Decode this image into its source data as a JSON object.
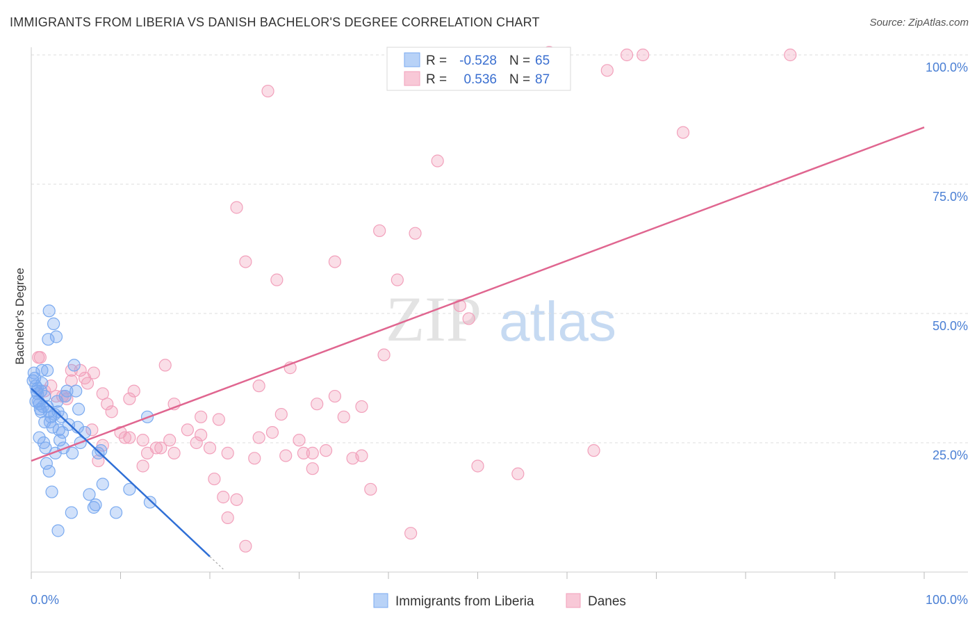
{
  "title": "IMMIGRANTS FROM LIBERIA VS DANISH BACHELOR'S DEGREE CORRELATION CHART",
  "source": "Source: ZipAtlas.com",
  "watermark": {
    "zip": "ZIP",
    "atlas": "atlas"
  },
  "colors": {
    "blue": "#7aaaf0",
    "blue_line": "#2f6fd6",
    "pink": "#f2a0bb",
    "pink_line": "#e06690",
    "axis_text": "#4a7fd4"
  },
  "chart_data": {
    "type": "scatter",
    "title": "IMMIGRANTS FROM LIBERIA VS DANISH BACHELOR'S DEGREE CORRELATION CHART",
    "xlabel": "",
    "ylabel": "Bachelor's Degree",
    "xlim": [
      0,
      100
    ],
    "ylim": [
      0,
      100
    ],
    "x_tick_labels": [
      "0.0%",
      "100.0%"
    ],
    "y_tick_labels": [
      {
        "value": 25,
        "label": "25.0%"
      },
      {
        "value": 50,
        "label": "50.0%"
      },
      {
        "value": 75,
        "label": "75.0%"
      },
      {
        "value": 100,
        "label": "100.0%"
      }
    ],
    "legend": {
      "rows": [
        {
          "r_label": "R =",
          "r_value": "-0.528",
          "n_label": "N =",
          "n_value": "65"
        },
        {
          "r_label": "R =",
          "r_value": "0.536",
          "n_label": "N =",
          "n_value": "87"
        }
      ],
      "bottom": [
        "Immigrants from Liberia",
        "Danes"
      ]
    },
    "series": [
      {
        "name": "Immigrants from Liberia",
        "regression": {
          "x": [
            0,
            20
          ],
          "y": [
            35.5,
            3
          ]
        },
        "points": [
          [
            0.3,
            38.5
          ],
          [
            0.4,
            37.5
          ],
          [
            0.5,
            36
          ],
          [
            0.6,
            35
          ],
          [
            0.7,
            34.5
          ],
          [
            0.8,
            33
          ],
          [
            0.9,
            32.5
          ],
          [
            1,
            31.5
          ],
          [
            1.1,
            35
          ],
          [
            1.2,
            36.5
          ],
          [
            0.5,
            33
          ],
          [
            1.5,
            34
          ],
          [
            1.8,
            32
          ],
          [
            2,
            31
          ],
          [
            2.2,
            30
          ],
          [
            0.9,
            26
          ],
          [
            1.4,
            25
          ],
          [
            1.6,
            24
          ],
          [
            1.7,
            21
          ],
          [
            2,
            19.5
          ],
          [
            2.3,
            15.5
          ],
          [
            2.1,
            29
          ],
          [
            2.4,
            28
          ],
          [
            2.6,
            30.5
          ],
          [
            3,
            31
          ],
          [
            3.1,
            27.5
          ],
          [
            3.2,
            25.5
          ],
          [
            3.4,
            30
          ],
          [
            3.5,
            27
          ],
          [
            3.6,
            24
          ],
          [
            3.8,
            34
          ],
          [
            4,
            35
          ],
          [
            4.2,
            28.5
          ],
          [
            4.5,
            11.5
          ],
          [
            4.6,
            23
          ],
          [
            4.8,
            40
          ],
          [
            5,
            35
          ],
          [
            5.2,
            28
          ],
          [
            5.3,
            31.5
          ],
          [
            5.5,
            25
          ],
          [
            6,
            27
          ],
          [
            6.5,
            15
          ],
          [
            7,
            12.5
          ],
          [
            7.2,
            13
          ],
          [
            7.5,
            23
          ],
          [
            7.8,
            23.5
          ],
          [
            8,
            17
          ],
          [
            9.5,
            11.5
          ],
          [
            11,
            16
          ],
          [
            13.3,
            13.5
          ],
          [
            13,
            30
          ],
          [
            3,
            8
          ],
          [
            2,
            50.5
          ],
          [
            2.5,
            48
          ],
          [
            2.8,
            45.5
          ],
          [
            1.9,
            45
          ],
          [
            1.8,
            39
          ],
          [
            1.2,
            39
          ],
          [
            2.7,
            23
          ],
          [
            1.1,
            31
          ],
          [
            1.3,
            32
          ],
          [
            1.5,
            29
          ],
          [
            2.9,
            33
          ],
          [
            0.2,
            37
          ],
          [
            0.7,
            35.5
          ]
        ]
      },
      {
        "name": "Danes",
        "regression": {
          "x": [
            0,
            100
          ],
          "y": [
            21.5,
            86
          ]
        },
        "points": [
          [
            66.7,
            100
          ],
          [
            68.5,
            100
          ],
          [
            85,
            100
          ],
          [
            64.5,
            97
          ],
          [
            58,
            100.5
          ],
          [
            26.5,
            93
          ],
          [
            73,
            85
          ],
          [
            45.5,
            79.5
          ],
          [
            23,
            70.5
          ],
          [
            39,
            66
          ],
          [
            43,
            65.5
          ],
          [
            24,
            60
          ],
          [
            34,
            60
          ],
          [
            27.5,
            56.5
          ],
          [
            41,
            56.5
          ],
          [
            48,
            51.5
          ],
          [
            49,
            49
          ],
          [
            39.5,
            42
          ],
          [
            1,
            41.5
          ],
          [
            0.8,
            41.5
          ],
          [
            15,
            40
          ],
          [
            29,
            39.5
          ],
          [
            4.5,
            39
          ],
          [
            5.5,
            39
          ],
          [
            7,
            38.5
          ],
          [
            6,
            37.5
          ],
          [
            4.5,
            37
          ],
          [
            6.3,
            36.5
          ],
          [
            2.2,
            36
          ],
          [
            25.5,
            36
          ],
          [
            1.5,
            35
          ],
          [
            8,
            34.5
          ],
          [
            11.5,
            35
          ],
          [
            34,
            34
          ],
          [
            3.8,
            34
          ],
          [
            2.8,
            34
          ],
          [
            11,
            33.5
          ],
          [
            4,
            33.5
          ],
          [
            8.5,
            32.5
          ],
          [
            16,
            32.5
          ],
          [
            32,
            32.5
          ],
          [
            37,
            32
          ],
          [
            9,
            31
          ],
          [
            28,
            30.5
          ],
          [
            19,
            30
          ],
          [
            21,
            29.5
          ],
          [
            35,
            30
          ],
          [
            6.8,
            27.5
          ],
          [
            10,
            27
          ],
          [
            17.5,
            27.5
          ],
          [
            19,
            26.5
          ],
          [
            11,
            26
          ],
          [
            12.5,
            25.5
          ],
          [
            15.5,
            25.5
          ],
          [
            25.5,
            26
          ],
          [
            27,
            27
          ],
          [
            30,
            25.5
          ],
          [
            14,
            24
          ],
          [
            18.5,
            25
          ],
          [
            14.5,
            24
          ],
          [
            8,
            24.5
          ],
          [
            13,
            23
          ],
          [
            16,
            23
          ],
          [
            20,
            24
          ],
          [
            30.5,
            23
          ],
          [
            33,
            23.5
          ],
          [
            37,
            22.5
          ],
          [
            31.5,
            23
          ],
          [
            22,
            23
          ],
          [
            28.5,
            22.5
          ],
          [
            25,
            22
          ],
          [
            36,
            22
          ],
          [
            12.5,
            20.5
          ],
          [
            31.5,
            20
          ],
          [
            54.5,
            19
          ],
          [
            50,
            20.5
          ],
          [
            63,
            23.5
          ],
          [
            20.5,
            18
          ],
          [
            21.5,
            14.5
          ],
          [
            23,
            14
          ],
          [
            38,
            16
          ],
          [
            22,
            10.5
          ],
          [
            24,
            5
          ],
          [
            42.5,
            7.5
          ],
          [
            7.5,
            21.5
          ],
          [
            10.5,
            26
          ],
          [
            3.5,
            34
          ]
        ]
      }
    ]
  }
}
